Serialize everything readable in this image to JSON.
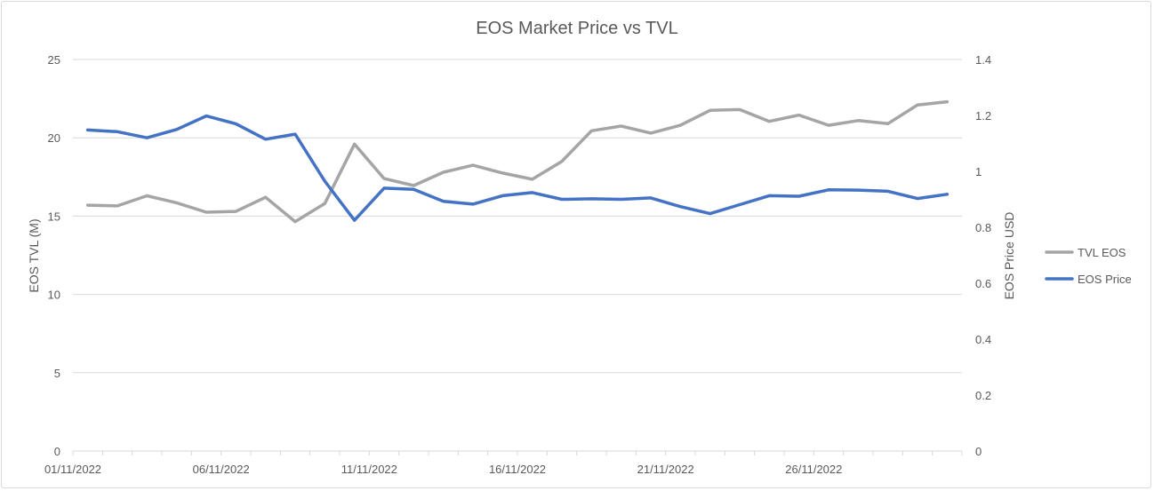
{
  "chart_data": {
    "type": "line",
    "title": "EOS Market Price vs TVL",
    "xlabel": "",
    "ylabel": "EOS TVL (M)",
    "y2label": "EOS Price USD",
    "ylim": [
      0,
      25
    ],
    "y2lim": [
      0,
      1.4
    ],
    "yticks": [
      "0",
      "5",
      "10",
      "15",
      "20",
      "25"
    ],
    "y2ticks": [
      "0",
      "0.2",
      "0.4",
      "0.6",
      "0.8",
      "1",
      "1.2",
      "1.4"
    ],
    "x": [
      "01/11/2022",
      "02/11/2022",
      "03/11/2022",
      "04/11/2022",
      "05/11/2022",
      "06/11/2022",
      "07/11/2022",
      "08/11/2022",
      "09/11/2022",
      "10/11/2022",
      "11/11/2022",
      "12/11/2022",
      "13/11/2022",
      "14/11/2022",
      "15/11/2022",
      "16/11/2022",
      "17/11/2022",
      "18/11/2022",
      "19/11/2022",
      "20/11/2022",
      "21/11/2022",
      "22/11/2022",
      "23/11/2022",
      "24/11/2022",
      "25/11/2022",
      "26/11/2022",
      "27/11/2022",
      "28/11/2022",
      "29/11/2022",
      "30/11/2022"
    ],
    "xtick_labels": [
      "01/11/2022",
      "06/11/2022",
      "11/11/2022",
      "16/11/2022",
      "21/11/2022",
      "26/11/2022"
    ],
    "grid": true,
    "legend_position": "right",
    "series": [
      {
        "name": "TVL EOS",
        "axis": "left",
        "color": "#a5a5a5",
        "values": [
          15.7,
          15.65,
          16.3,
          15.85,
          15.25,
          15.3,
          16.2,
          14.65,
          15.8,
          19.6,
          17.4,
          16.95,
          17.8,
          18.25,
          17.75,
          17.35,
          18.5,
          20.45,
          20.75,
          20.3,
          20.8,
          21.75,
          21.8,
          21.05,
          21.45,
          20.8,
          21.1,
          20.9,
          22.1,
          22.3
        ]
      },
      {
        "name": "EOS Price",
        "axis": "right",
        "color": "#4472c4",
        "values": [
          1.148,
          1.142,
          1.12,
          1.15,
          1.198,
          1.17,
          1.115,
          1.133,
          0.965,
          0.825,
          0.94,
          0.936,
          0.893,
          0.883,
          0.913,
          0.924,
          0.9,
          0.902,
          0.9,
          0.905,
          0.874,
          0.849,
          0.881,
          0.913,
          0.911,
          0.934,
          0.933,
          0.929,
          0.903,
          0.918
        ]
      }
    ]
  }
}
